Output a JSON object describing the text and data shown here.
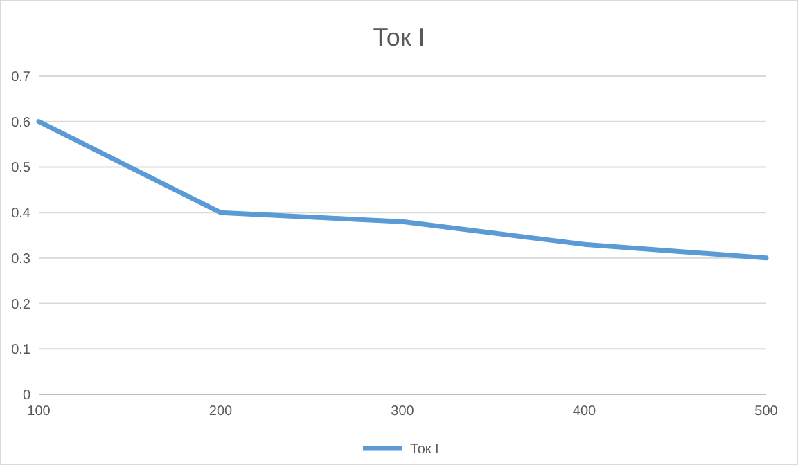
{
  "chart_data": {
    "type": "line",
    "title": "Ток I",
    "x": [
      100,
      200,
      300,
      400,
      500
    ],
    "series": [
      {
        "name": "Ток I",
        "color": "#5b9bd5",
        "values": [
          0.6,
          0.4,
          0.38,
          0.33,
          0.3
        ]
      }
    ],
    "xlim": [
      100,
      500
    ],
    "xticks": [
      100,
      200,
      300,
      400,
      500
    ],
    "ylim": [
      0,
      0.7
    ],
    "yticks": [
      0,
      0.1,
      0.2,
      0.3,
      0.4,
      0.5,
      0.6,
      0.7
    ],
    "grid": "y",
    "legend": "bottom",
    "marker": "none",
    "line_style": "solid"
  }
}
